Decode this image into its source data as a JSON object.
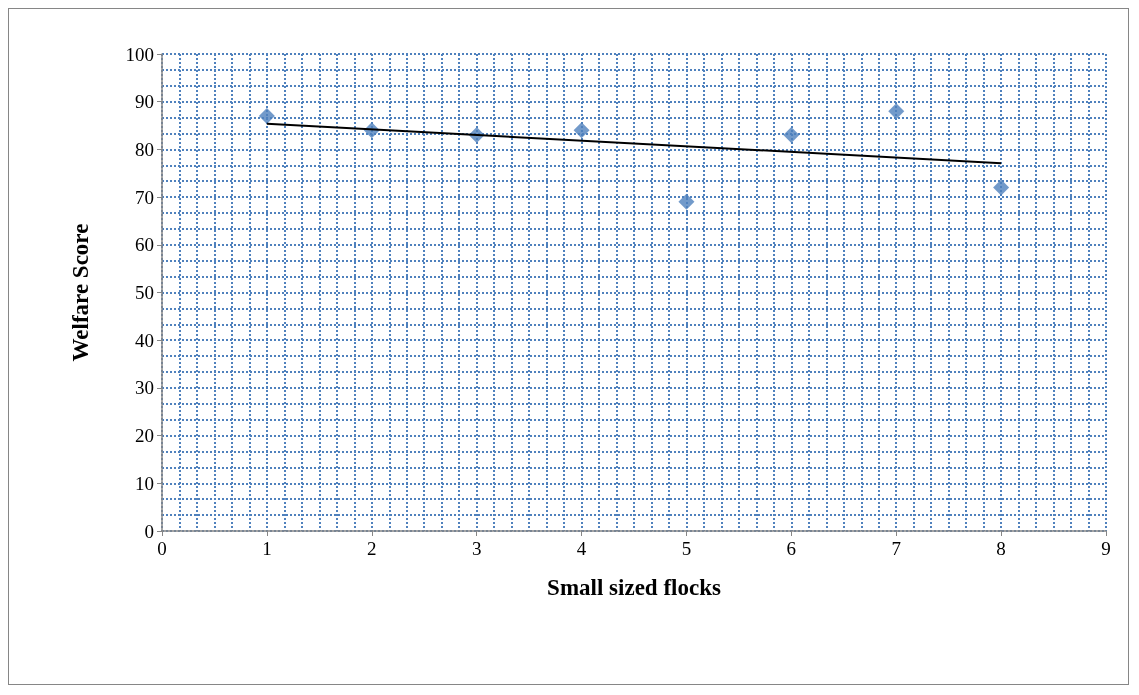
{
  "chart_data": {
    "type": "scatter",
    "xlabel": "Small sized flocks",
    "ylabel": "Welfare Score",
    "series": [
      {
        "color": "#4f81bd",
        "marker": "diamond",
        "x": [
          1,
          2,
          3,
          4,
          5,
          6,
          7,
          8
        ],
        "values": [
          87,
          84,
          83,
          84,
          69,
          83,
          88,
          72
        ]
      },
      {
        "type": "line",
        "color": "#000000",
        "marker": "none",
        "line_style": "solid",
        "x": [
          1,
          8
        ],
        "values": [
          85.4,
          77.1
        ]
      }
    ],
    "xlim": [
      0,
      9
    ],
    "xticks": [
      0,
      1,
      2,
      3,
      4,
      5,
      6,
      7,
      8,
      9
    ],
    "ylim": [
      0,
      100
    ],
    "yticks": [
      0,
      10,
      20,
      30,
      40,
      50,
      60,
      70,
      80,
      90,
      100
    ],
    "grid": true
  }
}
